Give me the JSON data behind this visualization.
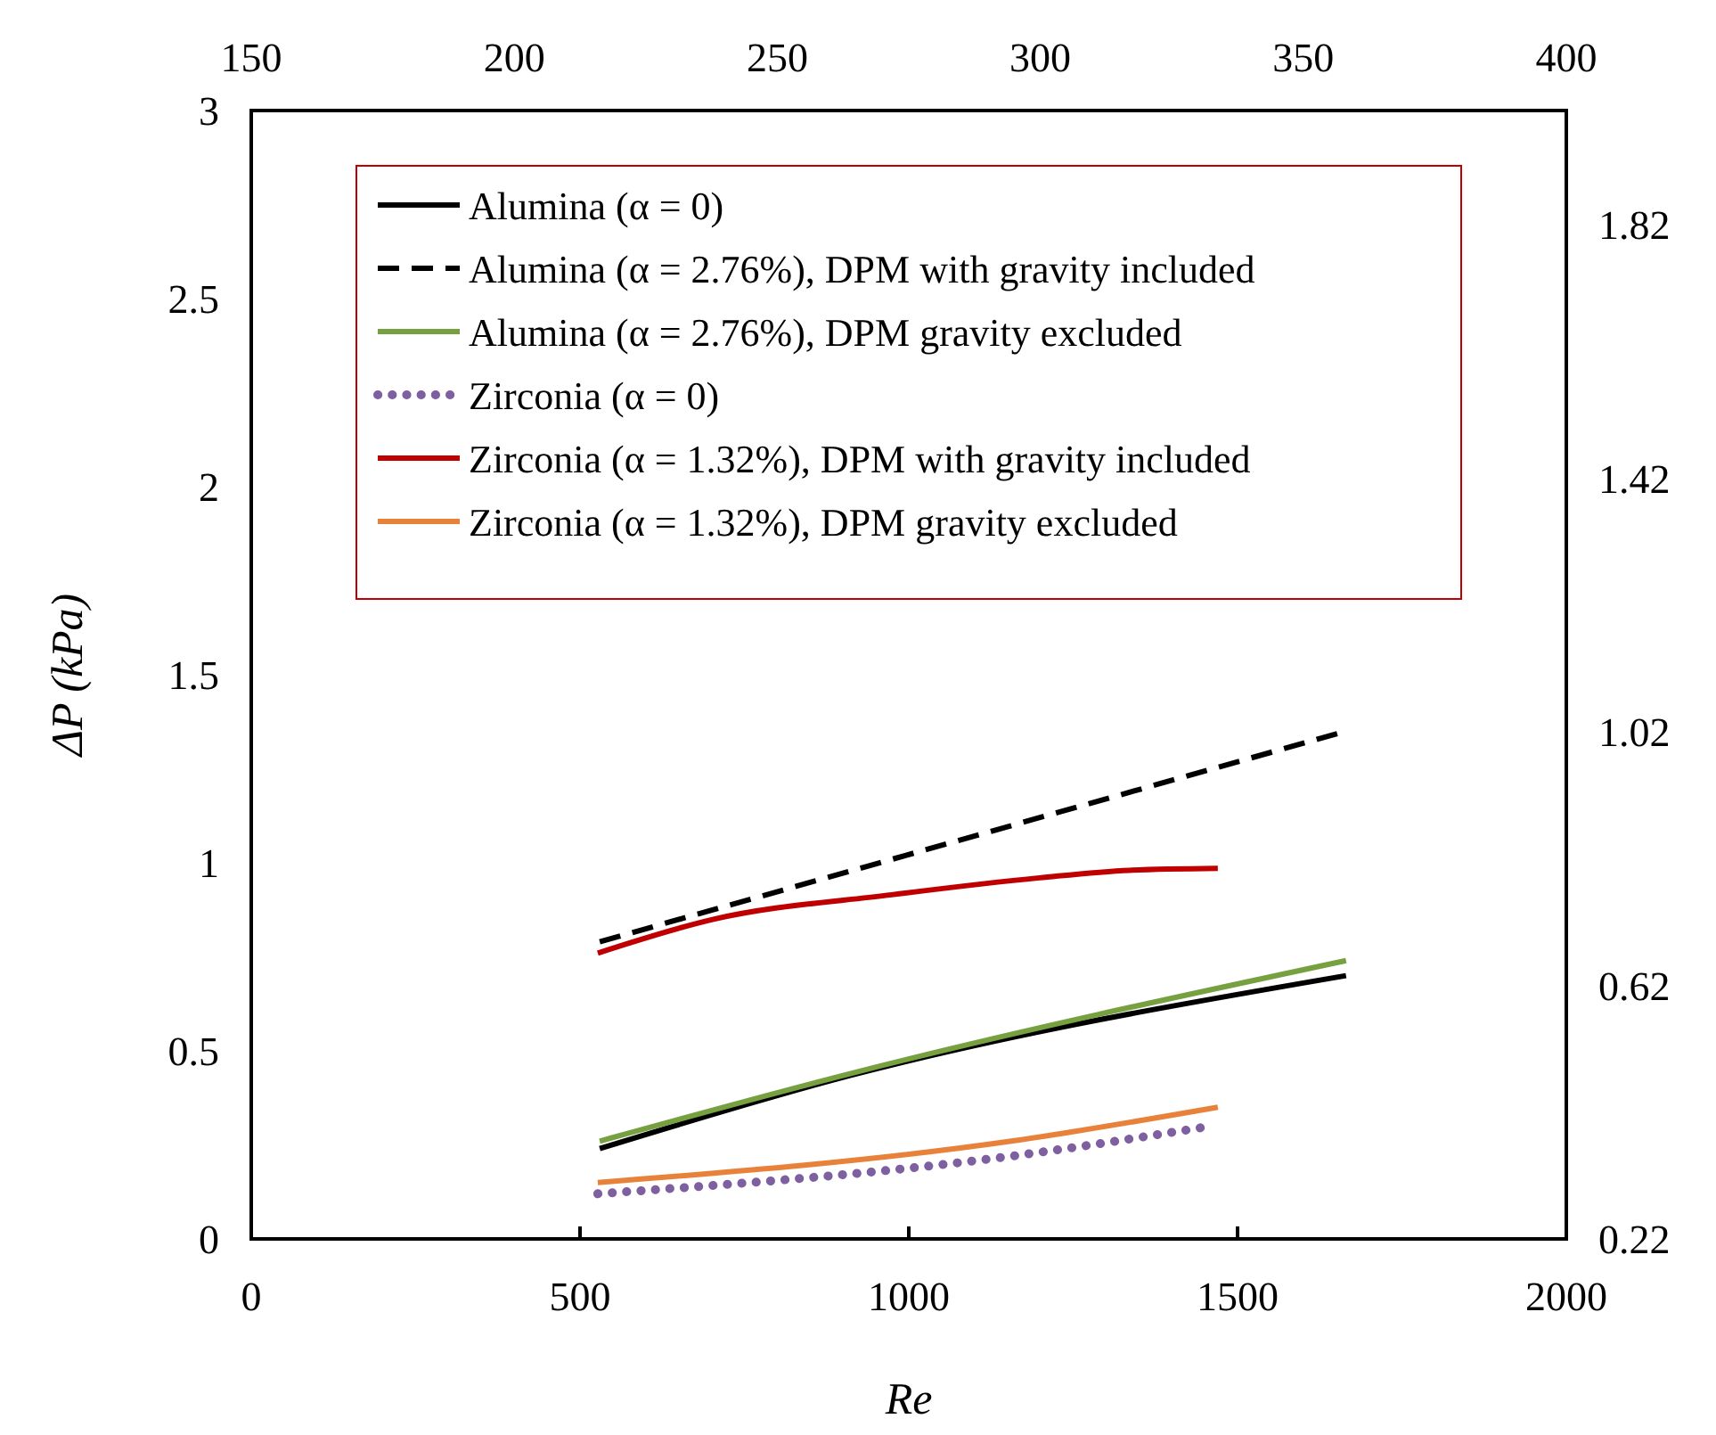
{
  "chart_data": {
    "type": "line",
    "xlabel": "Re",
    "ylabel": "ΔP (kPa)",
    "xlim": [
      0,
      2000
    ],
    "xticks": [
      0,
      500,
      1000,
      1500,
      2000
    ],
    "ylim": [
      0,
      3
    ],
    "yticks": [
      0,
      0.5,
      1,
      1.5,
      2,
      2.5,
      3
    ],
    "x2lim": [
      150,
      400
    ],
    "x2ticks": [
      150,
      200,
      250,
      300,
      350,
      400
    ],
    "y2lim": [
      0.22,
      2.0
    ],
    "y2ticks": [
      0.22,
      0.62,
      1.02,
      1.42,
      1.82
    ],
    "legend": "top",
    "grid": false,
    "marker": "none",
    "series": [
      {
        "name": "Alumina (α = 0)",
        "color": "#000000",
        "line_style": "solid",
        "x": [
          530,
          912,
          1665
        ],
        "values": [
          0.24,
          0.435,
          0.7
        ]
      },
      {
        "name": "Alumina (α = 2.76%), DPM with gravity included",
        "color": "#000000",
        "line_style": "dashed",
        "x": [
          530,
          1665
        ],
        "values": [
          0.79,
          1.35
        ]
      },
      {
        "name": "Alumina (α = 2.76%), DPM  gravity excluded",
        "color": "#77a040",
        "line_style": "solid",
        "x": [
          530,
          912,
          1665
        ],
        "values": [
          0.26,
          0.44,
          0.74
        ]
      },
      {
        "name": "Zirconia (α = 0)",
        "color": "#7e5fa0",
        "line_style": "dotted",
        "x": [
          527,
          1156,
          1460
        ],
        "values": [
          0.12,
          0.22,
          0.3
        ]
      },
      {
        "name": "Zirconia (α = 1.32%), DPM with gravity included",
        "color": "#c00000",
        "line_style": "solid",
        "x": [
          527,
          703,
          974,
          1199,
          1335,
          1470
        ],
        "values": [
          0.76,
          0.85,
          0.915,
          0.96,
          0.98,
          0.985
        ]
      },
      {
        "name": "Zirconia (α = 1.32%), DPM  gravity excluded",
        "color": "#e8823a",
        "line_style": "solid",
        "x": [
          527,
          1156,
          1470
        ],
        "values": [
          0.15,
          0.26,
          0.35
        ]
      }
    ]
  }
}
